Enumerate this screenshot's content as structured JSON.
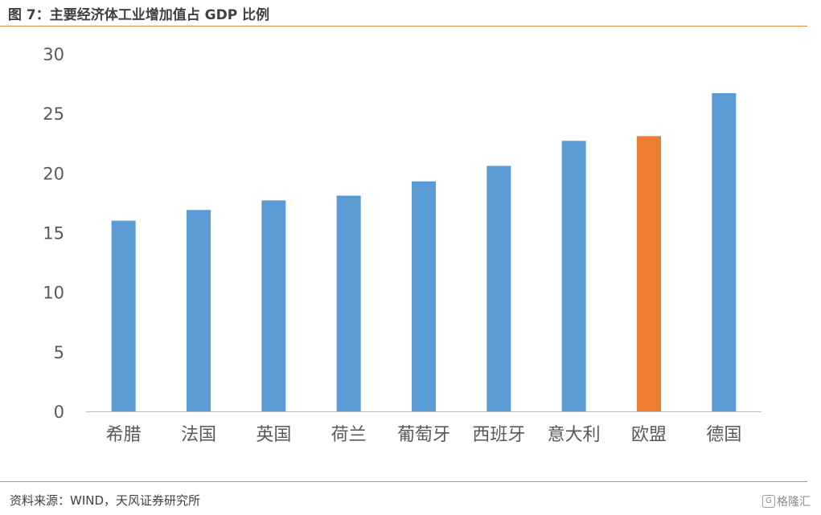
{
  "header": {
    "title": "图 7：主要经济体工业增加值占 GDP 比例"
  },
  "footer": {
    "source": "资料来源：WIND，天风证券研究所",
    "watermark": "格隆汇"
  },
  "colors": {
    "default_bar": "#5b9bd5",
    "highlight_bar": "#ed7d31",
    "accent_rule": "#e08a3c"
  },
  "chart_data": {
    "type": "bar",
    "title": "主要经济体工业增加值占 GDP 比例",
    "categories": [
      "希腊",
      "法国",
      "英国",
      "荷兰",
      "葡萄牙",
      "西班牙",
      "意大利",
      "欧盟",
      "德国"
    ],
    "values": [
      16.0,
      16.9,
      17.7,
      18.1,
      19.3,
      20.6,
      22.7,
      23.1,
      26.7
    ],
    "highlight": [
      "欧盟"
    ],
    "xlabel": "",
    "ylabel": "",
    "ylim": [
      0,
      30
    ],
    "yticks": [
      0,
      5,
      10,
      15,
      20,
      25,
      30
    ],
    "grid": false,
    "legend": "none"
  }
}
